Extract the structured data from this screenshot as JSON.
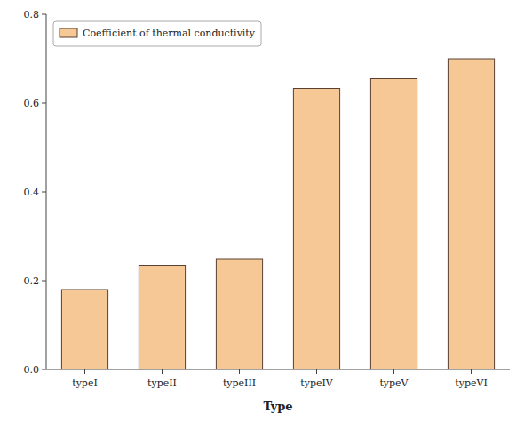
{
  "chart_data": {
    "type": "bar",
    "x_label": "Type",
    "categories": [
      "typeI",
      "typeII",
      "typeIII",
      "typeIV",
      "typeV",
      "typeVI"
    ],
    "series": [
      {
        "name": "Coefficient of thermal conductivity",
        "color": "#F5C896",
        "values": [
          0.18,
          0.235,
          0.248,
          0.633,
          0.655,
          0.7
        ]
      }
    ],
    "ylim": [
      0.0,
      0.8
    ],
    "yticks": [
      {
        "value": 0.0,
        "label": "0.0"
      },
      0.2,
      0.4,
      0.6,
      0.8
    ],
    "grid": false,
    "legend": "upper left"
  }
}
